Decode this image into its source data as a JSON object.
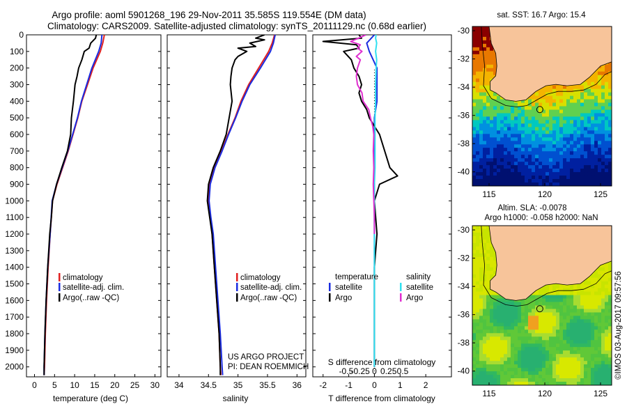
{
  "header": {
    "line1": "Argo profile: aoml 5901268_196 29-Nov-2011 35.585S 119.554E (DM data)",
    "line2": "Climatology: CARS2009. Satellite-adjusted climatology: synTS_20111129.nc (0.68d earlier)"
  },
  "credits": {
    "project": "US ARGO PROJECT",
    "pi": "PI: DEAN ROEMMICH",
    "imos": "©IMOS 03-Aug-2017 09:57:56"
  },
  "colors": {
    "climatology": "#e02020",
    "satellite": "#1a2ce0",
    "argo": "#000000",
    "sal_satellite": "#30e0f0",
    "sal_argo": "#e030d0",
    "land": "#f7c49a"
  },
  "chart_data": [
    {
      "type": "line",
      "title": "",
      "xlabel": "temperature (deg C)",
      "ylabel": "",
      "xlim": [
        -2,
        31.5
      ],
      "ylim": [
        2060,
        0
      ],
      "xticks": [
        0,
        5,
        10,
        15,
        20,
        25,
        30
      ],
      "yticks": [
        0,
        100,
        200,
        300,
        400,
        500,
        600,
        700,
        800,
        900,
        1000,
        1100,
        1200,
        1300,
        1400,
        1500,
        1600,
        1700,
        1800,
        1900,
        2000
      ],
      "legend": [
        "climatology",
        "satellite-adj. clim.",
        "Argo(..raw -QC)"
      ],
      "series": [
        {
          "name": "climatology",
          "color": "#e02020",
          "depth": [
            0,
            50,
            100,
            200,
            300,
            400,
            500,
            600,
            700,
            800,
            900,
            1000,
            1200,
            1400,
            1600,
            1800,
            2000,
            2050
          ],
          "values": [
            17.4,
            17.0,
            16.4,
            14.6,
            13.2,
            11.8,
            10.8,
            9.6,
            8.4,
            7.0,
            5.6,
            4.5,
            3.9,
            3.4,
            3.0,
            2.7,
            2.5,
            2.4
          ]
        },
        {
          "name": "satellite-adj. clim.",
          "color": "#1a2ce0",
          "depth": [
            0,
            50,
            100,
            200,
            300,
            400,
            500,
            600,
            700,
            800,
            900,
            1000,
            1200,
            1400,
            1600,
            1800,
            2000,
            2050
          ],
          "values": [
            16.8,
            16.6,
            16.0,
            14.3,
            13.0,
            11.7,
            10.7,
            9.5,
            8.3,
            6.9,
            5.5,
            4.4,
            3.9,
            3.3,
            2.9,
            2.6,
            2.4,
            2.4
          ]
        },
        {
          "name": "Argo(..raw -QC)",
          "color": "#000000",
          "depth": [
            0,
            20,
            50,
            80,
            100,
            150,
            200,
            250,
            300,
            400,
            500,
            600,
            700,
            800,
            900,
            1000,
            1100,
            1200,
            1400,
            1600,
            1800,
            2000,
            2050
          ],
          "values": [
            15.4,
            15.2,
            14.0,
            13.6,
            12.4,
            11.8,
            11.0,
            10.6,
            10.1,
            9.7,
            9.2,
            9.0,
            8.2,
            6.8,
            5.5,
            4.5,
            4.2,
            3.8,
            3.3,
            2.9,
            2.6,
            2.4,
            2.4
          ]
        }
      ]
    },
    {
      "type": "line",
      "title": "",
      "xlabel": "salinity",
      "ylabel": "",
      "xlim": [
        33.8,
        36.15
      ],
      "ylim": [
        2060,
        0
      ],
      "xticks": [
        34,
        34.5,
        35,
        35.5,
        36
      ],
      "xticklabels": [
        "34",
        "34.5",
        "35",
        "35.5",
        "36"
      ],
      "legend": [
        "climatology",
        "satellite-adj. clim.",
        "Argo(..raw -QC)"
      ],
      "series": [
        {
          "name": "climatology",
          "color": "#e02020",
          "depth": [
            0,
            50,
            100,
            200,
            300,
            400,
            500,
            600,
            700,
            800,
            900,
            1000,
            1100,
            1200,
            1400,
            1600,
            1800,
            2000,
            2050
          ],
          "values": [
            35.62,
            35.58,
            35.52,
            35.35,
            35.18,
            35.05,
            34.95,
            34.83,
            34.72,
            34.6,
            34.52,
            34.5,
            34.53,
            34.56,
            34.6,
            34.64,
            34.68,
            34.7,
            34.71
          ]
        },
        {
          "name": "satellite-adj. clim.",
          "color": "#1a2ce0",
          "depth": [
            0,
            50,
            100,
            200,
            300,
            400,
            500,
            600,
            700,
            800,
            900,
            1000,
            1100,
            1200,
            1400,
            1600,
            1800,
            2000,
            2050
          ],
          "values": [
            35.63,
            35.6,
            35.55,
            35.38,
            35.2,
            35.07,
            34.96,
            34.84,
            34.73,
            34.61,
            34.53,
            34.51,
            34.54,
            34.58,
            34.62,
            34.66,
            34.7,
            34.73,
            34.74
          ]
        },
        {
          "name": "Argo(..raw -QC)",
          "color": "#000000",
          "depth": [
            0,
            20,
            30,
            50,
            70,
            80,
            100,
            130,
            150,
            200,
            250,
            300,
            400,
            500,
            600,
            700,
            800,
            900,
            1000,
            1100,
            1200,
            1400,
            1600,
            1800,
            2000,
            2050
          ],
          "values": [
            35.45,
            35.3,
            35.45,
            35.2,
            35.3,
            35.0,
            35.15,
            35.0,
            34.95,
            34.9,
            34.88,
            34.87,
            34.9,
            34.85,
            34.8,
            34.7,
            34.58,
            34.5,
            34.48,
            34.52,
            34.56,
            34.6,
            34.64,
            34.68,
            34.7,
            34.7
          ]
        }
      ]
    },
    {
      "type": "line",
      "title": "",
      "xlabel": "T difference from climatology",
      "ylabel": "",
      "top_xlabel": "S difference from climatology",
      "xlim": [
        -2.4,
        3.0
      ],
      "ylim": [
        2060,
        0
      ],
      "xticks": [
        -2,
        -1,
        0,
        1,
        2
      ],
      "top_ticks": [
        -0.5,
        -0.25,
        0,
        0.25,
        0.5
      ],
      "top_tick_labels": [
        "-0.5",
        "-0.25",
        "0",
        "0.25",
        "0.5"
      ],
      "legend_titles": [
        "temperature",
        "salinity"
      ],
      "legend": [
        "satellite",
        "Argo",
        "satellite",
        "Argo"
      ],
      "series": [
        {
          "name": "T satellite",
          "color": "#1a2ce0",
          "depth": [
            0,
            50,
            100,
            200,
            300,
            400,
            500,
            600,
            700,
            800,
            900,
            1000,
            1200,
            1400,
            1600,
            1800,
            2000
          ],
          "values": [
            0.0,
            -0.3,
            -0.2,
            0.1,
            0.1,
            0.1,
            0.0,
            0.0,
            0.0,
            0.0,
            0.0,
            0.0,
            0.0,
            0.0,
            0.0,
            0.0,
            0.0
          ]
        },
        {
          "name": "T Argo",
          "color": "#000000",
          "depth": [
            0,
            20,
            40,
            60,
            80,
            100,
            150,
            200,
            250,
            300,
            350,
            400,
            450,
            500,
            550,
            600,
            700,
            800,
            850,
            900,
            1000,
            1200,
            1400,
            1600,
            1800,
            2000
          ],
          "values": [
            -0.6,
            -0.5,
            -2.0,
            -0.7,
            -0.6,
            -1.2,
            -0.9,
            -0.8,
            -0.6,
            -0.5,
            -0.6,
            -0.5,
            -0.3,
            -0.2,
            0.0,
            0.2,
            0.4,
            0.6,
            0.9,
            0.2,
            0.0,
            0.1,
            0.0,
            0.0,
            0.0,
            0.0
          ]
        },
        {
          "name": "S satellite",
          "color": "#30e0f0",
          "depth": [
            0,
            20,
            50,
            100,
            150,
            200,
            300,
            400,
            500,
            600,
            700,
            800,
            900,
            1000,
            1200,
            1400,
            1600,
            1800,
            2000
          ],
          "values": [
            0.03,
            0.02,
            0.04,
            0.02,
            0.04,
            0.03,
            0.02,
            0.02,
            0.01,
            0.01,
            0.01,
            0.01,
            0.0,
            0.0,
            0.0,
            0.0,
            0.0,
            0.0,
            0.0
          ]
        },
        {
          "name": "S Argo",
          "color": "#e030d0",
          "depth": [
            0,
            20,
            40,
            60,
            80,
            100,
            130,
            150,
            200,
            250,
            300,
            350,
            400,
            450,
            500,
            550,
            600,
            700,
            800,
            900,
            1000,
            1100,
            1200
          ],
          "values": [
            -0.15,
            -0.28,
            -0.42,
            -0.25,
            -0.3,
            -0.22,
            -0.32,
            -0.25,
            -0.3,
            -0.32,
            -0.3,
            -0.22,
            -0.2,
            -0.1,
            -0.07,
            -0.03,
            -0.01,
            -0.02,
            -0.01,
            -0.02,
            -0.01,
            0.0,
            0.0
          ]
        }
      ]
    },
    {
      "type": "heatmap",
      "title": "sat. SST: 16.7  Argo: 15.4",
      "xlabel": "",
      "ylabel": "",
      "xlim": [
        113.5,
        126
      ],
      "ylim": [
        -41,
        -29.7
      ],
      "xticks": [
        115,
        120,
        125
      ],
      "yticks": [
        -30,
        -32,
        -34,
        -36,
        -38,
        -40
      ],
      "float_position": {
        "lon": 119.554,
        "lat": -35.585
      }
    },
    {
      "type": "heatmap",
      "title": "Altim. SLA: -0.0078",
      "subtitle": "Argo h1000: -0.058  h2000: NaN",
      "xlabel": "",
      "ylabel": "",
      "xlim": [
        113.5,
        126
      ],
      "ylim": [
        -41,
        -29.7
      ],
      "xticks": [
        115,
        120,
        125
      ],
      "yticks": [
        -30,
        -32,
        -34,
        -36,
        -38,
        -40
      ],
      "float_position": {
        "lon": 119.554,
        "lat": -35.585
      }
    }
  ]
}
